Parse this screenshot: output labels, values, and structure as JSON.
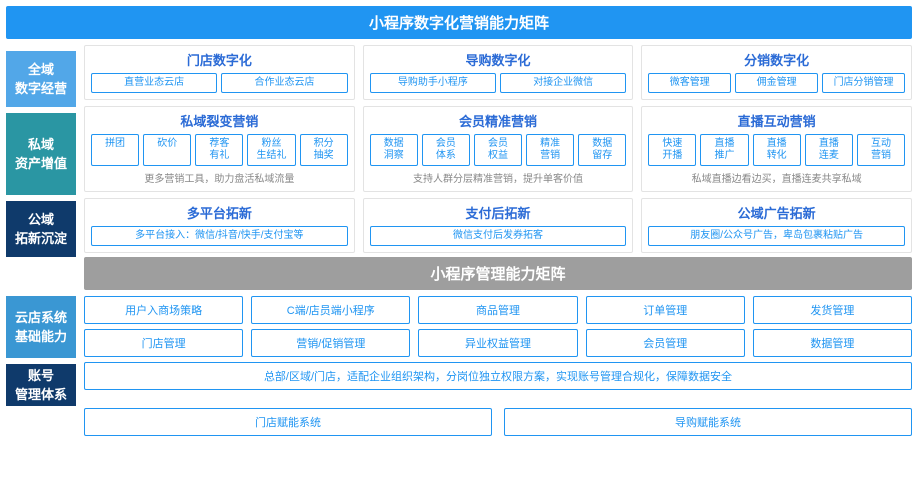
{
  "colors": {
    "header_blue": "#2095f2",
    "sub_blue": "#2b6bd6",
    "side1": "#52a7e8",
    "side2": "#2a96a3",
    "side3": "#0f3a6b",
    "gray_header": "#9e9e9e",
    "side4": "#3a97d3",
    "side_dark": "#0f3a6b",
    "border": "#2095f2",
    "text_blue": "#2095f2",
    "card_border": "#e3e3e3",
    "note_gray": "#888888"
  },
  "header1": "小程序数字化营销能力矩阵",
  "row1": {
    "side": "全域\n数字经营",
    "cards": [
      {
        "title": "门店数字化",
        "pills": [
          "直营业态云店",
          "合作业态云店"
        ]
      },
      {
        "title": "导购数字化",
        "pills": [
          "导购助手小程序",
          "对接企业微信"
        ]
      },
      {
        "title": "分销数字化",
        "pills": [
          "微客管理",
          "佣金管理",
          "门店分销管理"
        ]
      }
    ]
  },
  "row2": {
    "side": "私域\n资产增值",
    "cards": [
      {
        "title": "私域裂变营销",
        "pills": [
          "拼团",
          "砍价",
          "荐客\n有礼",
          "粉丝\n生结礼",
          "积分\n抽奖"
        ],
        "note": "更多营销工具，助力盘活私域流量"
      },
      {
        "title": "会员精准营销",
        "pills": [
          "数据\n洞察",
          "会员\n体系",
          "会员\n权益",
          "精准\n营销",
          "数据\n留存"
        ],
        "note": "支持人群分层精准营销，提升单客价值"
      },
      {
        "title": "直播互动营销",
        "pills": [
          "快速\n开播",
          "直播\n推广",
          "直播\n转化",
          "直播\n连麦",
          "互动\n营销"
        ],
        "note": "私域直播边看边买，直播连麦共享私域"
      }
    ]
  },
  "row3": {
    "side": "公域\n拓新沉淀",
    "cards": [
      {
        "title": "多平台拓新",
        "pills": [
          "多平台接入：微信/抖音/快手/支付宝等"
        ]
      },
      {
        "title": "支付后拓新",
        "pills": [
          "微信支付后发券拓客"
        ]
      },
      {
        "title": "公域广告拓新",
        "pills": [
          "朋友圈/公众号广告，卑岛包裹粘贴广告"
        ]
      }
    ]
  },
  "header2": "小程序管理能力矩阵",
  "bottom1": {
    "side": "云店系统\n基础能力",
    "row_a": [
      "用户入商场策略",
      "C端/店员端小程序",
      "商品管理",
      "订单管理",
      "发货管理"
    ],
    "row_b": [
      "门店管理",
      "营销/促销管理",
      "异业权益管理",
      "会员管理",
      "数据管理"
    ]
  },
  "bottom2": {
    "side": "账号\n管理体系",
    "long_text": "总部/区域/门店，适配企业组织架构，分岗位独立权限方案，实现账号管理合规化，保障数据安全"
  },
  "footer_row": [
    "门店赋能系统",
    "导购赋能系统"
  ]
}
